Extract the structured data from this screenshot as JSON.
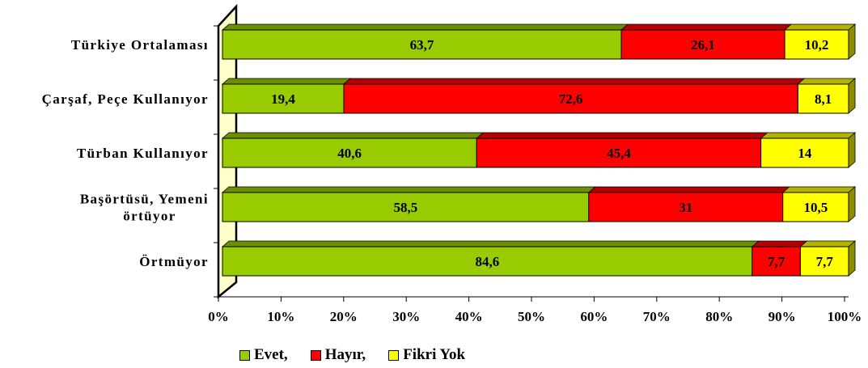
{
  "chart_data": {
    "type": "bar",
    "orientation": "horizontal",
    "stacked": "percent",
    "categories": [
      "Türkiye Ortalaması",
      "Çarşaf, Peçe Kullanıyor",
      "Türban Kullanıyor",
      "Başörtüsü, Yemeni örtüyor",
      "Örtmüyor"
    ],
    "category_lines": [
      [
        "Türkiye Ortalaması"
      ],
      [
        "Çarşaf, Peçe Kullanıyor"
      ],
      [
        "Türban Kullanıyor"
      ],
      [
        "Başörtüsü, Yemeni",
        "örtüyor"
      ],
      [
        "Örtmüyor"
      ]
    ],
    "series": [
      {
        "name": "Evet,",
        "color": "#99CC00",
        "values": [
          63.7,
          19.4,
          40.6,
          58.5,
          84.6
        ],
        "labels": [
          "63,7",
          "19,4",
          "40,6",
          "58,5",
          "84,6"
        ]
      },
      {
        "name": "Hayır,",
        "color": "#FF0000",
        "values": [
          26.1,
          72.6,
          45.4,
          31,
          7.7
        ],
        "labels": [
          "26,1",
          "72,6",
          "45,4",
          "31",
          "7,7"
        ]
      },
      {
        "name": "Fikri Yok",
        "color": "#FFFF00",
        "values": [
          10.2,
          8.1,
          14,
          10.5,
          7.7
        ],
        "labels": [
          "10,2",
          "8,1",
          "14",
          "10,5",
          "7,7"
        ]
      }
    ],
    "x_ticks": [
      "0%",
      "10%",
      "20%",
      "30%",
      "40%",
      "50%",
      "60%",
      "70%",
      "80%",
      "90%",
      "100%"
    ],
    "xlim": [
      0,
      100
    ],
    "grid": false,
    "legend_position": "bottom",
    "wall_color": "#FFFFCC",
    "three_d": true
  }
}
